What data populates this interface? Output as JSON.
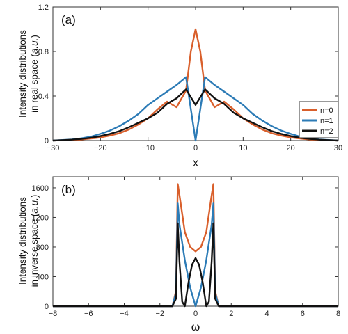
{
  "chart_data": [
    {
      "panel": "(a)",
      "type": "line",
      "xlabel": "x",
      "ylabel_line1": "Intensity distributions",
      "ylabel_line2_prefix": "in real space (",
      "ylabel_unit": "a.u.",
      "ylabel_line2_suffix": ")",
      "xlim": [
        -30,
        30
      ],
      "ylim": [
        0,
        1.2
      ],
      "xticks": [
        -30,
        -20,
        -10,
        0,
        10,
        20,
        30
      ],
      "xtick_labels": [
        "−30",
        "−20",
        "−10",
        "0",
        "10",
        "20",
        "30"
      ],
      "yticks": [
        0,
        0.4,
        0.8,
        1.2
      ],
      "ytick_labels": [
        "0",
        "0.4",
        "0.8",
        "1.2"
      ],
      "legend_position": "right",
      "series": [
        {
          "name": "n=0",
          "color": "#d95f2b",
          "x": [
            -30,
            -28,
            -26,
            -24,
            -22,
            -20,
            -18,
            -16,
            -14,
            -12,
            -10,
            -8,
            -6,
            -4,
            -2,
            -1,
            0,
            1,
            2,
            4,
            6,
            8,
            10,
            12,
            14,
            16,
            18,
            20,
            22,
            24,
            26,
            28,
            30
          ],
          "y": [
            0,
            0.004,
            0.006,
            0.01,
            0.018,
            0.028,
            0.045,
            0.066,
            0.1,
            0.145,
            0.2,
            0.28,
            0.35,
            0.3,
            0.45,
            0.8,
            1.0,
            0.8,
            0.45,
            0.3,
            0.35,
            0.28,
            0.2,
            0.145,
            0.1,
            0.066,
            0.045,
            0.028,
            0.018,
            0.01,
            0.006,
            0.004,
            0
          ]
        },
        {
          "name": "n=1",
          "color": "#2c7bb6",
          "x": [
            -30,
            -28,
            -26,
            -24,
            -22,
            -20,
            -18,
            -16,
            -14,
            -12,
            -10,
            -8,
            -6,
            -4,
            -2,
            0,
            2,
            4,
            6,
            8,
            10,
            12,
            14,
            16,
            18,
            20,
            22,
            24,
            26,
            28,
            30
          ],
          "y": [
            0,
            0.005,
            0.01,
            0.02,
            0.035,
            0.06,
            0.09,
            0.13,
            0.18,
            0.24,
            0.32,
            0.38,
            0.44,
            0.5,
            0.57,
            0,
            0.57,
            0.5,
            0.44,
            0.38,
            0.32,
            0.24,
            0.18,
            0.13,
            0.09,
            0.06,
            0.035,
            0.02,
            0.01,
            0.005,
            0
          ]
        },
        {
          "name": "n=2",
          "color": "#111111",
          "x": [
            -30,
            -28,
            -26,
            -24,
            -22,
            -20,
            -18,
            -16,
            -14,
            -12,
            -10,
            -8,
            -6,
            -4,
            -2,
            0,
            2,
            4,
            6,
            8,
            10,
            12,
            14,
            16,
            18,
            20,
            22,
            24,
            26,
            28,
            30
          ],
          "y": [
            0,
            0.004,
            0.008,
            0.015,
            0.025,
            0.04,
            0.06,
            0.085,
            0.12,
            0.16,
            0.2,
            0.25,
            0.33,
            0.38,
            0.46,
            0.32,
            0.46,
            0.38,
            0.33,
            0.25,
            0.2,
            0.16,
            0.12,
            0.085,
            0.06,
            0.04,
            0.025,
            0.015,
            0.008,
            0.004,
            0
          ]
        }
      ]
    },
    {
      "panel": "(b)",
      "type": "line",
      "xlabel": "ω",
      "ylabel_line1": "Intensity distributions",
      "ylabel_line2_prefix": "in inverse space (",
      "ylabel_unit": "a.u.",
      "ylabel_line2_suffix": ")",
      "xlim": [
        -8,
        8
      ],
      "ylim": [
        0,
        1750
      ],
      "xticks": [
        -8,
        -6,
        -4,
        -2,
        0,
        2,
        4,
        6,
        8
      ],
      "xtick_labels": [
        "−8",
        "−6",
        "−4",
        "−2",
        "0",
        "2",
        "4",
        "6",
        "8"
      ],
      "yticks": [
        0,
        400,
        800,
        1200,
        1600
      ],
      "ytick_labels": [
        "0",
        "400",
        "800",
        "1200",
        "1600"
      ],
      "series": [
        {
          "name": "n=0",
          "color": "#d95f2b",
          "x": [
            -8,
            -1.3,
            -1.1,
            -1.0,
            -0.9,
            -0.6,
            -0.3,
            0,
            0.3,
            0.6,
            0.9,
            1.0,
            1.1,
            1.3,
            8
          ],
          "y": [
            0,
            0,
            200,
            1650,
            1500,
            1000,
            800,
            740,
            800,
            1000,
            1500,
            1650,
            200,
            0,
            0
          ]
        },
        {
          "name": "n=1",
          "color": "#2c7bb6",
          "x": [
            -8,
            -1.3,
            -1.1,
            -1.0,
            -0.9,
            -0.6,
            -0.3,
            0,
            0.3,
            0.6,
            0.9,
            1.0,
            1.1,
            1.3,
            8
          ],
          "y": [
            0,
            0,
            180,
            1390,
            1100,
            620,
            250,
            0,
            250,
            620,
            1100,
            1390,
            180,
            0,
            0
          ]
        },
        {
          "name": "n=2",
          "color": "#111111",
          "x": [
            -8,
            -1.3,
            -1.1,
            -1.0,
            -0.9,
            -0.75,
            -0.6,
            -0.4,
            -0.2,
            0,
            0.2,
            0.4,
            0.6,
            0.75,
            0.9,
            1.0,
            1.1,
            1.3,
            8
          ],
          "y": [
            0,
            0,
            100,
            1120,
            600,
            60,
            0,
            320,
            560,
            650,
            560,
            320,
            0,
            60,
            600,
            1120,
            100,
            0,
            0
          ]
        }
      ]
    }
  ]
}
